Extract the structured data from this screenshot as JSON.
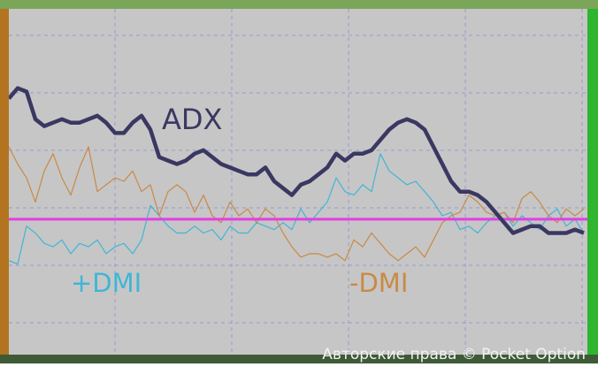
{
  "chart_data": {
    "type": "line",
    "x": [
      0,
      1,
      2,
      3,
      4,
      5,
      6,
      7,
      8,
      9,
      10,
      11,
      12,
      13,
      14,
      15,
      16,
      17,
      18,
      19,
      20,
      21,
      22,
      23,
      24,
      25,
      26,
      27,
      28,
      29,
      30,
      31,
      32,
      33,
      34,
      35,
      36,
      37,
      38,
      39,
      40,
      41,
      42,
      43,
      44,
      45,
      46,
      47,
      48,
      49,
      50,
      51,
      52,
      53,
      54,
      55,
      56,
      57,
      58,
      59,
      60,
      61,
      62,
      63,
      64,
      65
    ],
    "xlim": [
      0,
      65
    ],
    "ylim": [
      0,
      100
    ],
    "series": [
      {
        "name": "ADX",
        "color": "#3a3862",
        "values": [
          74,
          77,
          76,
          68,
          66,
          67,
          68,
          67,
          67,
          68,
          69,
          67,
          64,
          64,
          67,
          69,
          65,
          57,
          56,
          55,
          56,
          58,
          59,
          57,
          55,
          54,
          53,
          52,
          52,
          54,
          50,
          48,
          46,
          49,
          50,
          52,
          54,
          58,
          56,
          58,
          58,
          59,
          62,
          65,
          67,
          68,
          67,
          65,
          60,
          55,
          50,
          47,
          47,
          46,
          44,
          41,
          38,
          35,
          36,
          37,
          37,
          35,
          35,
          35,
          36,
          35
        ]
      },
      {
        "name": "+DMI",
        "color": "#3fb6d6",
        "values": [
          27,
          26,
          37,
          35,
          32,
          31,
          33,
          29,
          32,
          31,
          33,
          29,
          31,
          32,
          29,
          33,
          43,
          40,
          37,
          35,
          35,
          37,
          35,
          36,
          33,
          37,
          35,
          35,
          38,
          37,
          36,
          38,
          36,
          42,
          38,
          41,
          44,
          51,
          47,
          46,
          49,
          47,
          58,
          53,
          51,
          49,
          50,
          47,
          44,
          40,
          41,
          36,
          37,
          35,
          38,
          40,
          41,
          37,
          40,
          38,
          36,
          40,
          42,
          37,
          39,
          35
        ]
      },
      {
        "name": "-DMI",
        "color": "#c98a45",
        "values": [
          60,
          55,
          51,
          44,
          53,
          58,
          51,
          46,
          54,
          60,
          47,
          49,
          51,
          50,
          53,
          47,
          49,
          40,
          47,
          49,
          47,
          41,
          46,
          40,
          38,
          44,
          40,
          42,
          38,
          42,
          40,
          35,
          31,
          28,
          29,
          29,
          28,
          29,
          27,
          33,
          31,
          35,
          32,
          29,
          27,
          29,
          31,
          28,
          33,
          38,
          40,
          41,
          46,
          44,
          41,
          40,
          41,
          38,
          45,
          47,
          44,
          40,
          38,
          42,
          40,
          42
        ]
      }
    ],
    "level": 39,
    "level_color": "#e43ee4",
    "watermark": "Авторские права © Pocket Option"
  }
}
